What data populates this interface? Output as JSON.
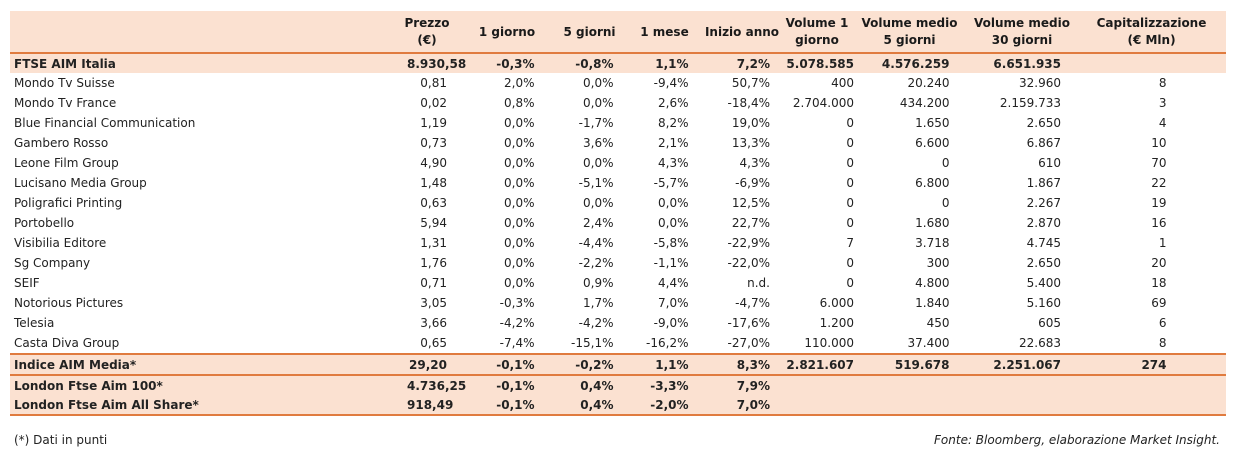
{
  "headers": [
    "",
    "Prezzo\n(€)",
    "1 giorno",
    "5 giorni",
    "1 mese",
    "Inizio anno",
    "Volume 1\ngiorno",
    "Volume medio\n5 giorni",
    "Volume medio\n30 giorni",
    "Capitalizzazione\n(€ Mln)"
  ],
  "index_row": {
    "name": "FTSE AIM Italia",
    "values": [
      "8.930,58",
      "-0,3%",
      "-0,8%",
      "1,1%",
      "7,2%",
      "5.078.585",
      "4.576.259",
      "6.651.935",
      ""
    ]
  },
  "rows": [
    {
      "name": "Mondo Tv Suisse",
      "values": [
        "0,81",
        "2,0%",
        "0,0%",
        "-9,4%",
        "50,7%",
        "400",
        "20.240",
        "32.960",
        "8"
      ]
    },
    {
      "name": "Mondo Tv France",
      "values": [
        "0,02",
        "0,8%",
        "0,0%",
        "2,6%",
        "-18,4%",
        "2.704.000",
        "434.200",
        "2.159.733",
        "3"
      ]
    },
    {
      "name": "Blue Financial Communication",
      "values": [
        "1,19",
        "0,0%",
        "-1,7%",
        "8,2%",
        "19,0%",
        "0",
        "1.650",
        "2.650",
        "4"
      ]
    },
    {
      "name": "Gambero Rosso",
      "values": [
        "0,73",
        "0,0%",
        "3,6%",
        "2,1%",
        "13,3%",
        "0",
        "6.600",
        "6.867",
        "10"
      ]
    },
    {
      "name": "Leone Film Group",
      "values": [
        "4,90",
        "0,0%",
        "0,0%",
        "4,3%",
        "4,3%",
        "0",
        "0",
        "610",
        "70"
      ]
    },
    {
      "name": "Lucisano Media Group",
      "values": [
        "1,48",
        "0,0%",
        "-5,1%",
        "-5,7%",
        "-6,9%",
        "0",
        "6.800",
        "1.867",
        "22"
      ]
    },
    {
      "name": "Poligrafici Printing",
      "values": [
        "0,63",
        "0,0%",
        "0,0%",
        "0,0%",
        "12,5%",
        "0",
        "0",
        "2.267",
        "19"
      ]
    },
    {
      "name": "Portobello",
      "values": [
        "5,94",
        "0,0%",
        "2,4%",
        "0,0%",
        "22,7%",
        "0",
        "1.680",
        "2.870",
        "16"
      ]
    },
    {
      "name": "Visibilia Editore",
      "values": [
        "1,31",
        "0,0%",
        "-4,4%",
        "-5,8%",
        "-22,9%",
        "7",
        "3.718",
        "4.745",
        "1"
      ]
    },
    {
      "name": "Sg Company",
      "values": [
        "1,76",
        "0,0%",
        "-2,2%",
        "-1,1%",
        "-22,0%",
        "0",
        "300",
        "2.650",
        "20"
      ]
    },
    {
      "name": "SEIF",
      "values": [
        "0,71",
        "0,0%",
        "0,9%",
        "4,4%",
        "n.d.",
        "0",
        "4.800",
        "5.400",
        "18"
      ]
    },
    {
      "name": "Notorious Pictures",
      "values": [
        "3,05",
        "-0,3%",
        "1,7%",
        "7,0%",
        "-4,7%",
        "6.000",
        "1.840",
        "5.160",
        "69"
      ]
    },
    {
      "name": "Telesia",
      "values": [
        "3,66",
        "-4,2%",
        "-4,2%",
        "-9,0%",
        "-17,6%",
        "1.200",
        "450",
        "605",
        "6"
      ]
    },
    {
      "name": "Casta Diva Group",
      "values": [
        "0,65",
        "-7,4%",
        "-15,1%",
        "-16,2%",
        "-27,0%",
        "110.000",
        "37.400",
        "22.683",
        "8"
      ]
    }
  ],
  "media_row": {
    "name": "Indice AIM Media*",
    "values": [
      "29,20",
      "-0,1%",
      "-0,2%",
      "1,1%",
      "8,3%",
      "2.821.607",
      "519.678",
      "2.251.067",
      "274"
    ]
  },
  "london_rows": [
    {
      "name": "London Ftse Aim 100*",
      "values": [
        "4.736,25",
        "-0,1%",
        "0,4%",
        "-3,3%",
        "7,9%",
        "",
        "",
        "",
        ""
      ]
    },
    {
      "name": "London Ftse Aim All Share*",
      "values": [
        "918,49",
        "-0,1%",
        "0,4%",
        "-2,0%",
        "7,0%",
        "",
        "",
        "",
        ""
      ]
    }
  ],
  "footnote": "(*) Dati in punti",
  "source": "Fonte: Bloomberg, elaborazione Market Insight.",
  "colors": {
    "highlight": "#fbe1d1",
    "rule": "#e07b3f"
  }
}
